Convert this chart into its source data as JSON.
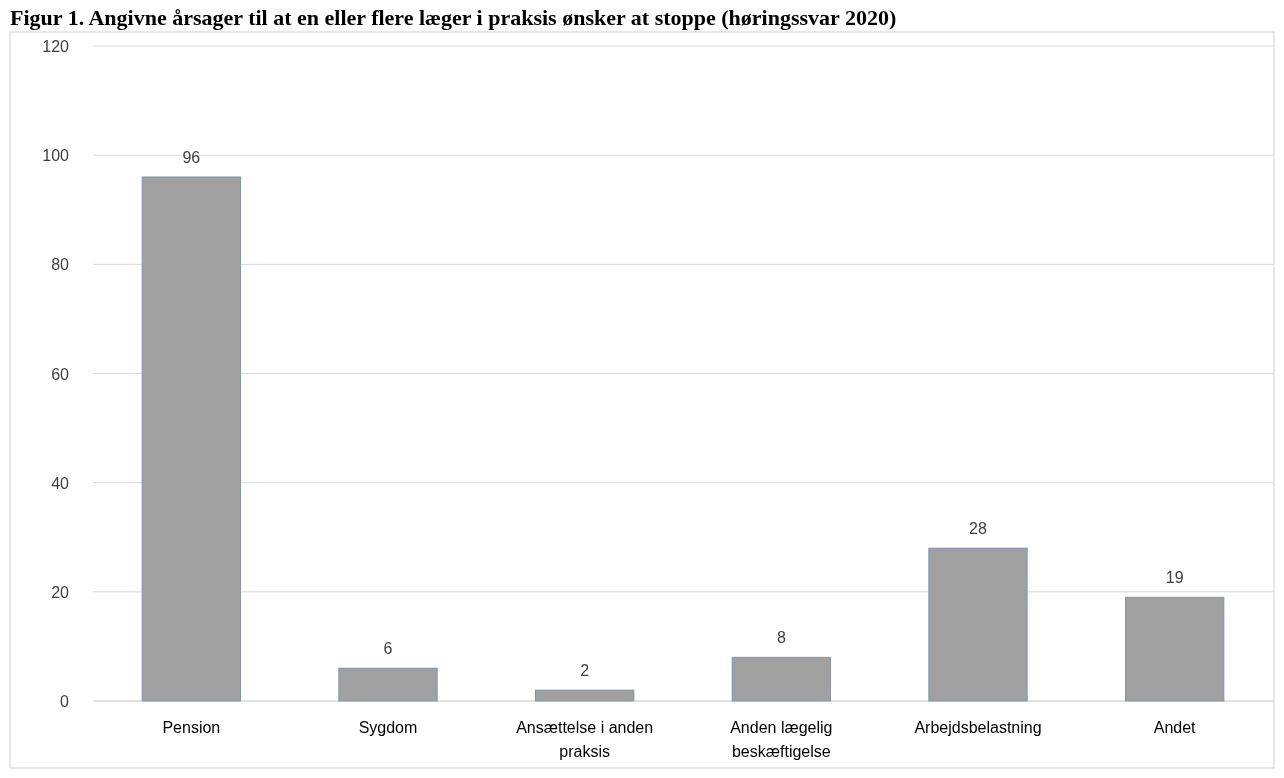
{
  "chart_data": {
    "type": "bar",
    "title": "Figur 1. Angivne årsager til at en eller flere læger i praksis ønsker at stoppe (høringssvar 2020)",
    "categories": [
      "Pension",
      "Sygdom",
      "Ansættelse i anden praksis",
      "Anden lægelig beskæftigelse",
      "Arbejdsbelastning",
      "Andet"
    ],
    "values": [
      96,
      6,
      2,
      8,
      28,
      19
    ],
    "color": "#a0a0a0",
    "ylim": [
      0,
      120
    ],
    "yticks": [
      0,
      20,
      40,
      60,
      80,
      100,
      120
    ],
    "grid": "y",
    "data_labels": true
  }
}
